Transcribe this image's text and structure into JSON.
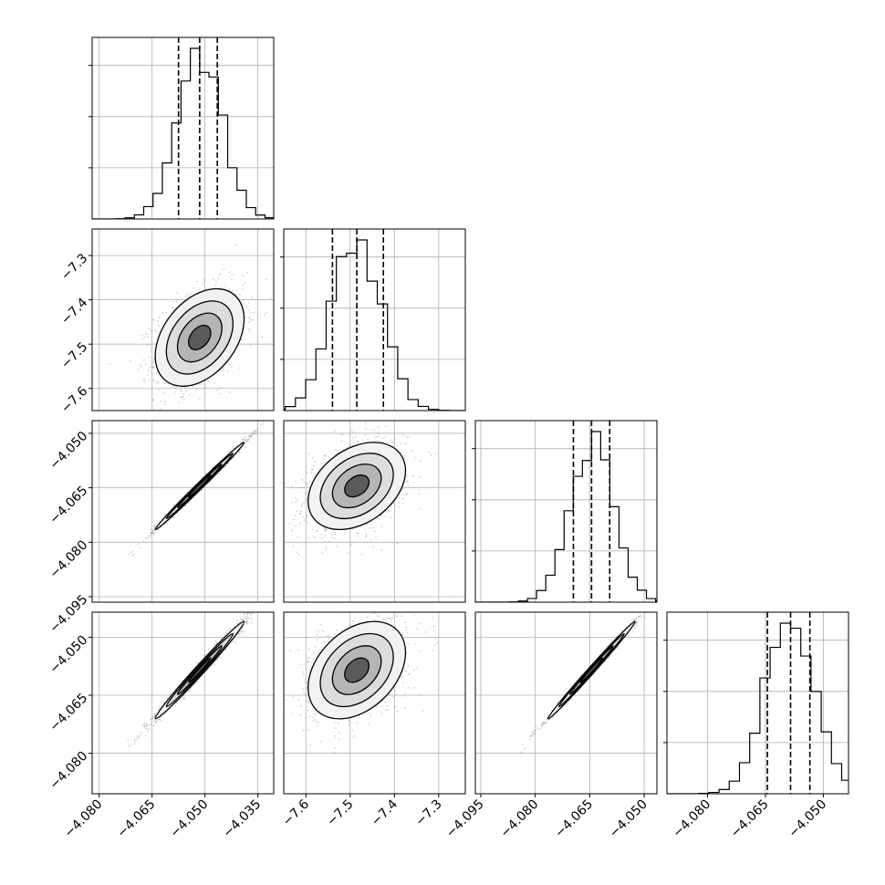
{
  "chart_data": {
    "type": "scatter",
    "subtype": "corner-plot",
    "n_params": 4,
    "grid": true,
    "quantile_lines": "dashed",
    "histogram_style": "step",
    "contour_levels": 4,
    "colors": {
      "line": "#000000",
      "grid": "#b0b0b0",
      "scatter": "#808080"
    },
    "params": [
      {
        "center": -4.0515,
        "sigma": 0.0063,
        "axis_range": [
          -4.082,
          -4.0305
        ],
        "tick_values": [
          -4.08,
          -4.065,
          -4.05,
          -4.035
        ],
        "tick_labels": [
          "−4.080",
          "−4.065",
          "−4.050",
          "−4.035"
        ],
        "quantiles": [
          -4.0575,
          -4.0515,
          -4.0465
        ]
      },
      {
        "center": -7.485,
        "sigma": 0.055,
        "axis_range": [
          -7.65,
          -7.24
        ],
        "tick_values": [
          -7.6,
          -7.5,
          -7.4,
          -7.3
        ],
        "tick_labels": [
          "−7.6",
          "−7.5",
          "−7.4",
          "−7.3"
        ],
        "quantiles": [
          -7.54,
          -7.485,
          -7.425
        ]
      },
      {
        "center": -4.0645,
        "sigma": 0.006,
        "axis_range": [
          -4.0965,
          -4.0465
        ],
        "tick_values": [
          -4.095,
          -4.08,
          -4.065,
          -4.05
        ],
        "tick_labels": [
          "−4.095",
          "−4.080",
          "−4.065",
          "−4.050"
        ],
        "quantiles": [
          -4.0695,
          -4.0645,
          -4.0595
        ]
      },
      {
        "center": -4.0585,
        "sigma": 0.0063,
        "axis_range": [
          -4.0905,
          -4.0435
        ],
        "tick_values": [
          -4.08,
          -4.065,
          -4.05
        ],
        "tick_labels": [
          "−4.080",
          "−4.065",
          "−4.050"
        ],
        "quantiles": [
          -4.0645,
          -4.0585,
          -4.0535
        ]
      }
    ],
    "correlations": [
      [
        1.0,
        0.38,
        0.995,
        0.99
      ],
      [
        0.38,
        1.0,
        0.35,
        0.36
      ],
      [
        0.995,
        0.35,
        1.0,
        0.995
      ],
      [
        0.99,
        0.36,
        0.995,
        1.0
      ]
    ]
  }
}
